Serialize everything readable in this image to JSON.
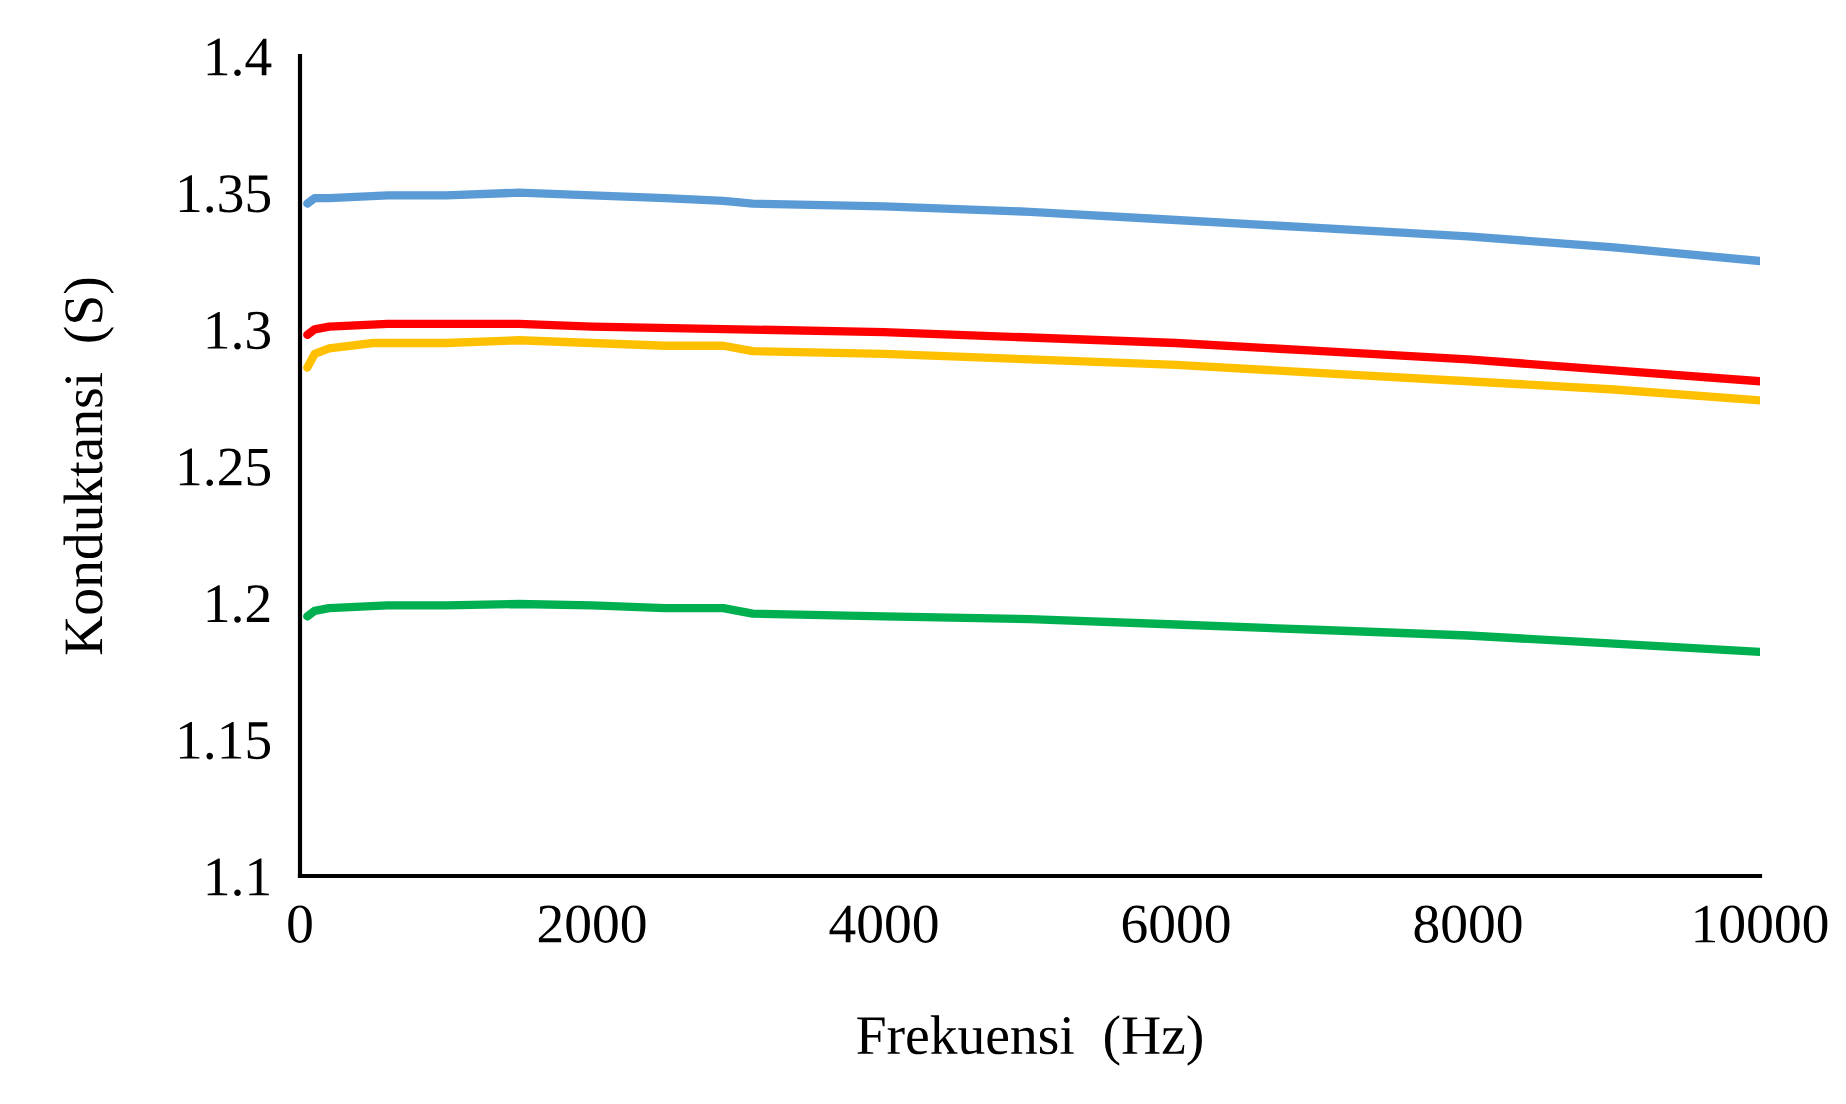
{
  "chart_data": {
    "type": "line",
    "xlabel": "Frekuensi  (Hz)",
    "ylabel": "Konduktansi  (S)",
    "xlim": [
      0,
      10000
    ],
    "xticks": [
      0,
      2000,
      4000,
      6000,
      8000,
      10000
    ],
    "ylim": [
      1.1,
      1.4
    ],
    "yticks": [
      1.1,
      1.15,
      1.2,
      1.25,
      1.3,
      1.35,
      1.4
    ],
    "grid": false,
    "marker": "none",
    "line_style": "solid",
    "series": [
      {
        "color": "#5b9bd5",
        "x": [
          50,
          100,
          200,
          600,
          1000,
          1500,
          2000,
          2500,
          2900,
          3100,
          4000,
          5000,
          6000,
          7000,
          8000,
          9000,
          10000
        ],
        "values": [
          1.346,
          1.348,
          1.348,
          1.349,
          1.349,
          1.35,
          1.349,
          1.348,
          1.347,
          1.346,
          1.345,
          1.343,
          1.34,
          1.337,
          1.334,
          1.33,
          1.325
        ]
      },
      {
        "color": "#ff0000",
        "x": [
          50,
          100,
          200,
          600,
          1000,
          1500,
          2000,
          3000,
          4000,
          5000,
          6000,
          7000,
          8000,
          9000,
          10000
        ],
        "values": [
          1.298,
          1.3,
          1.301,
          1.302,
          1.302,
          1.302,
          1.301,
          1.3,
          1.299,
          1.297,
          1.295,
          1.292,
          1.289,
          1.285,
          1.281
        ]
      },
      {
        "color": "#ffc000",
        "x": [
          50,
          100,
          200,
          500,
          1000,
          1500,
          2000,
          2500,
          2900,
          3100,
          4000,
          5000,
          6000,
          7000,
          8000,
          9000,
          10000
        ],
        "values": [
          1.286,
          1.291,
          1.293,
          1.295,
          1.295,
          1.296,
          1.295,
          1.294,
          1.294,
          1.292,
          1.291,
          1.289,
          1.287,
          1.284,
          1.281,
          1.278,
          1.274
        ]
      },
      {
        "color": "#00b050",
        "x": [
          50,
          100,
          200,
          600,
          1000,
          1500,
          2000,
          2500,
          2900,
          3100,
          4000,
          5000,
          6000,
          7000,
          8000,
          9000,
          10000
        ],
        "values": [
          1.195,
          1.197,
          1.198,
          1.199,
          1.199,
          1.1995,
          1.199,
          1.198,
          1.198,
          1.196,
          1.195,
          1.194,
          1.192,
          1.19,
          1.188,
          1.185,
          1.182
        ]
      }
    ]
  }
}
